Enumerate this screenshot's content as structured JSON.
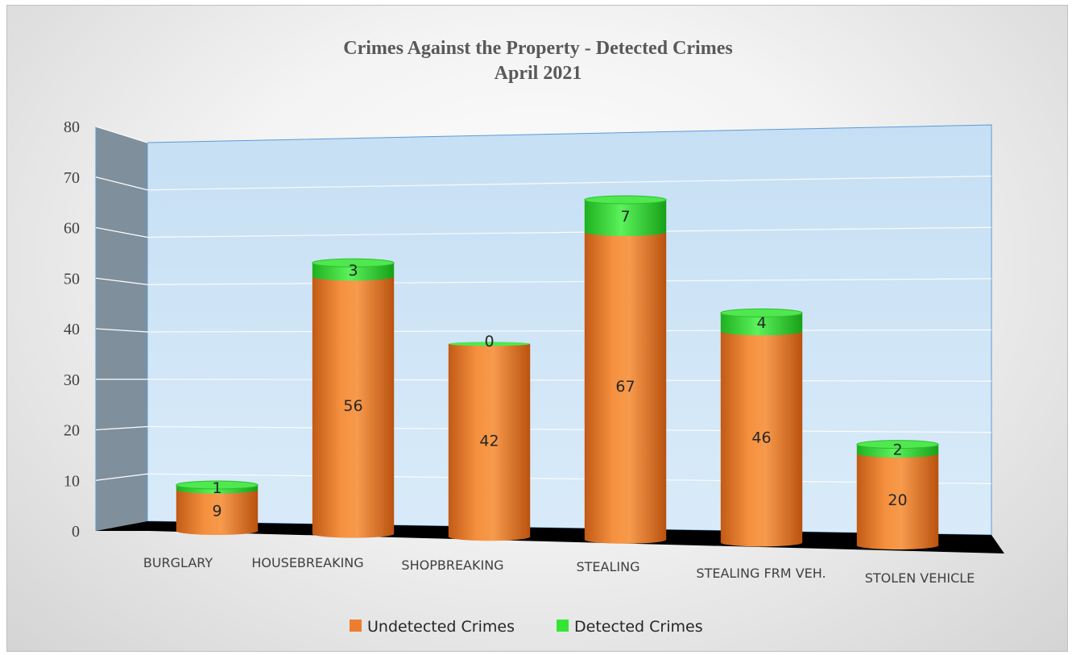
{
  "chart_data": {
    "type": "bar",
    "stacked": true,
    "three_d": true,
    "title": "Crimes Against the Property - Detected Crimes",
    "subtitle": "April 2021",
    "categories": [
      "BURGLARY",
      "HOUSEBREAKING",
      "SHOPBREAKING",
      "STEALING",
      "STEALING FRM VEH.",
      "STOLEN VEHICLE"
    ],
    "series": [
      {
        "name": "Undetected Crimes",
        "values": [
          9,
          56,
          42,
          67,
          46,
          20
        ],
        "color": "#ED7D31"
      },
      {
        "name": "Detected Crimes",
        "values": [
          1,
          3,
          0,
          7,
          4,
          2
        ],
        "color": "#33E633"
      }
    ],
    "ylim": [
      0,
      80
    ],
    "yticks": [
      0,
      10,
      20,
      30,
      40,
      50,
      60,
      70,
      80
    ],
    "grid": true,
    "legend": "bottom",
    "colors": {
      "back_wall": "#C9E2F6",
      "side_wall": "#7F8F9C",
      "floor": "#000000",
      "gridline": "#ffffff"
    }
  }
}
